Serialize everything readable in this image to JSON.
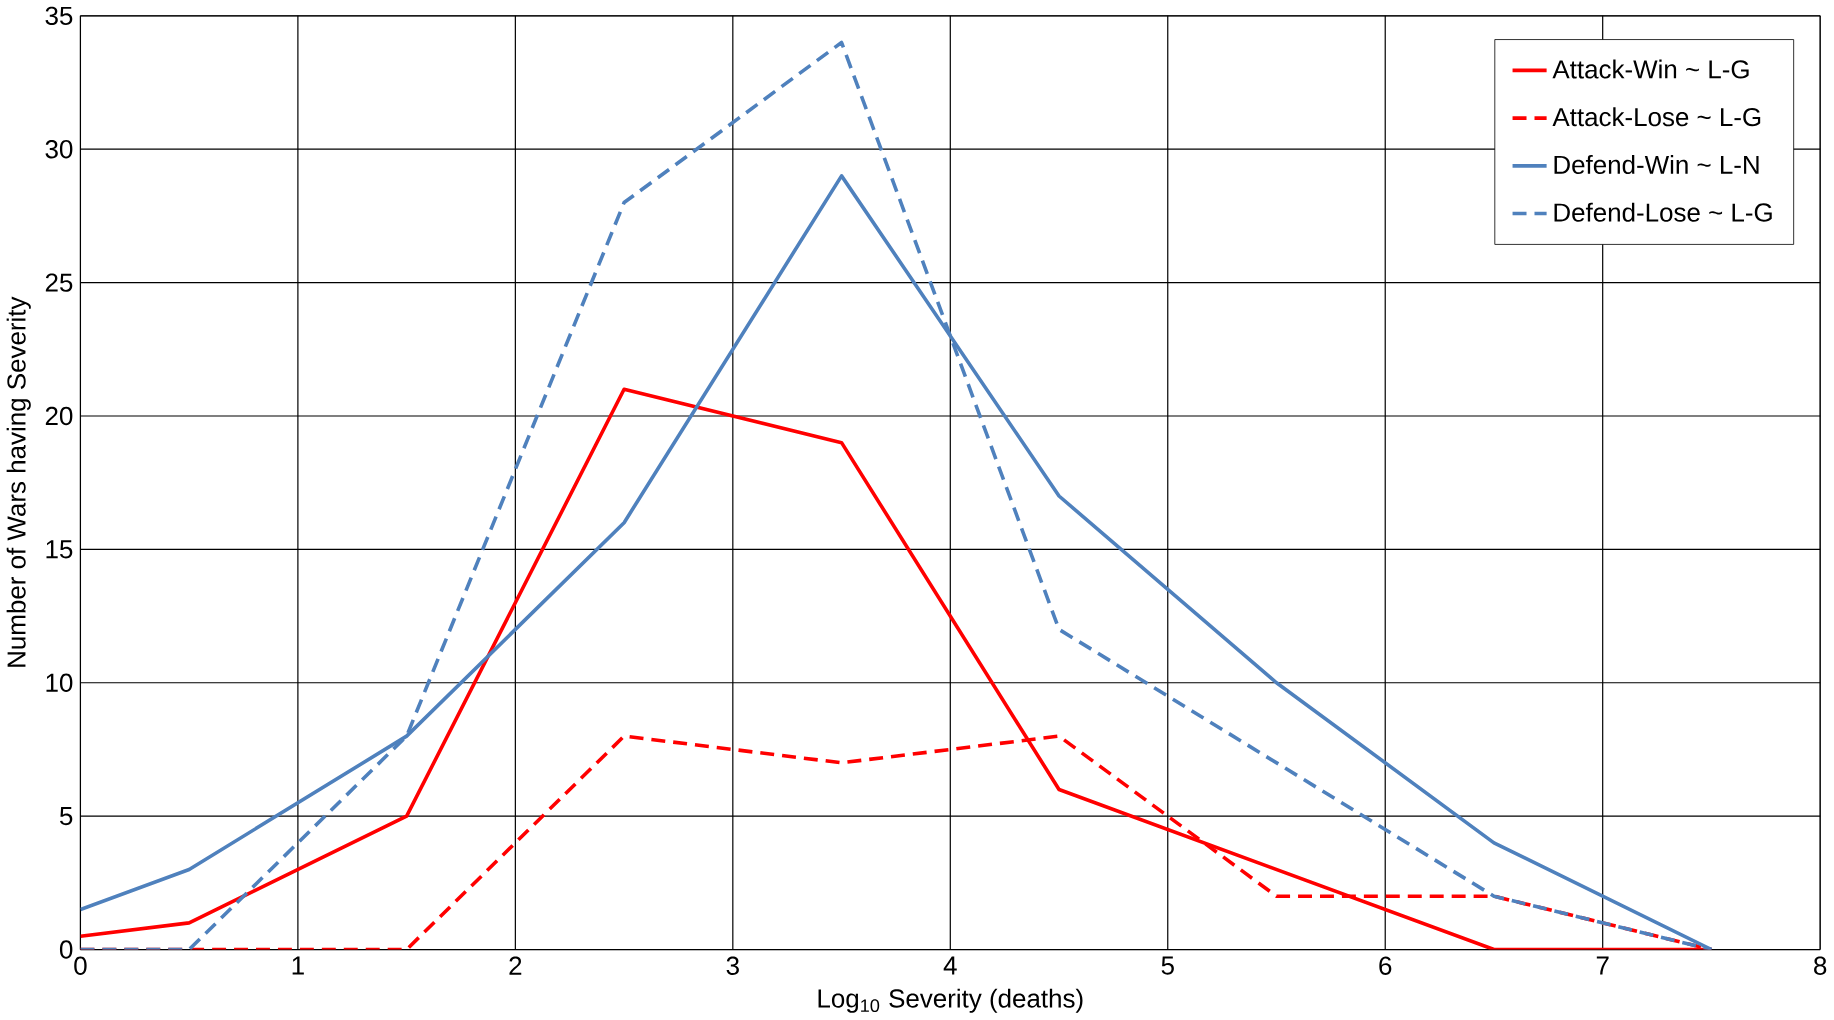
{
  "chart_data": {
    "type": "line",
    "xlabel": "Log$_{10}$ Severity (deaths)",
    "ylabel": "Number of Wars having Severity",
    "x": [
      0,
      0.5,
      1.5,
      2.5,
      3.5,
      4.5,
      5.5,
      6.5,
      7.5
    ],
    "series": [
      {
        "name": "Attack-Win ~ L-G",
        "color": "#ff0000",
        "line_style": "solid",
        "values": [
          0.5,
          1,
          5,
          21,
          19,
          6,
          3,
          0,
          0
        ]
      },
      {
        "name": "Attack-Lose ~ L-G",
        "color": "#ff0000",
        "line_style": "dashed",
        "values": [
          0,
          0,
          0,
          8,
          7,
          8,
          2,
          2,
          0
        ]
      },
      {
        "name": "Defend-Win ~ L-N",
        "color": "#4f81bd",
        "line_style": "solid",
        "values": [
          1.5,
          3,
          8,
          16,
          29,
          17,
          10,
          4,
          0
        ]
      },
      {
        "name": "Defend-Lose ~ L-G",
        "color": "#4f81bd",
        "line_style": "dashed",
        "values": [
          0,
          0,
          8,
          28,
          34,
          12,
          7,
          2,
          0
        ]
      }
    ],
    "xlim": [
      0,
      8
    ],
    "xticks": [
      0,
      1,
      2,
      3,
      4,
      5,
      6,
      7,
      8
    ],
    "ylim": [
      0,
      35
    ],
    "yticks": [
      0,
      5,
      10,
      15,
      20,
      25,
      30,
      35
    ],
    "grid": true,
    "legend": "top right",
    "marker": "none"
  }
}
